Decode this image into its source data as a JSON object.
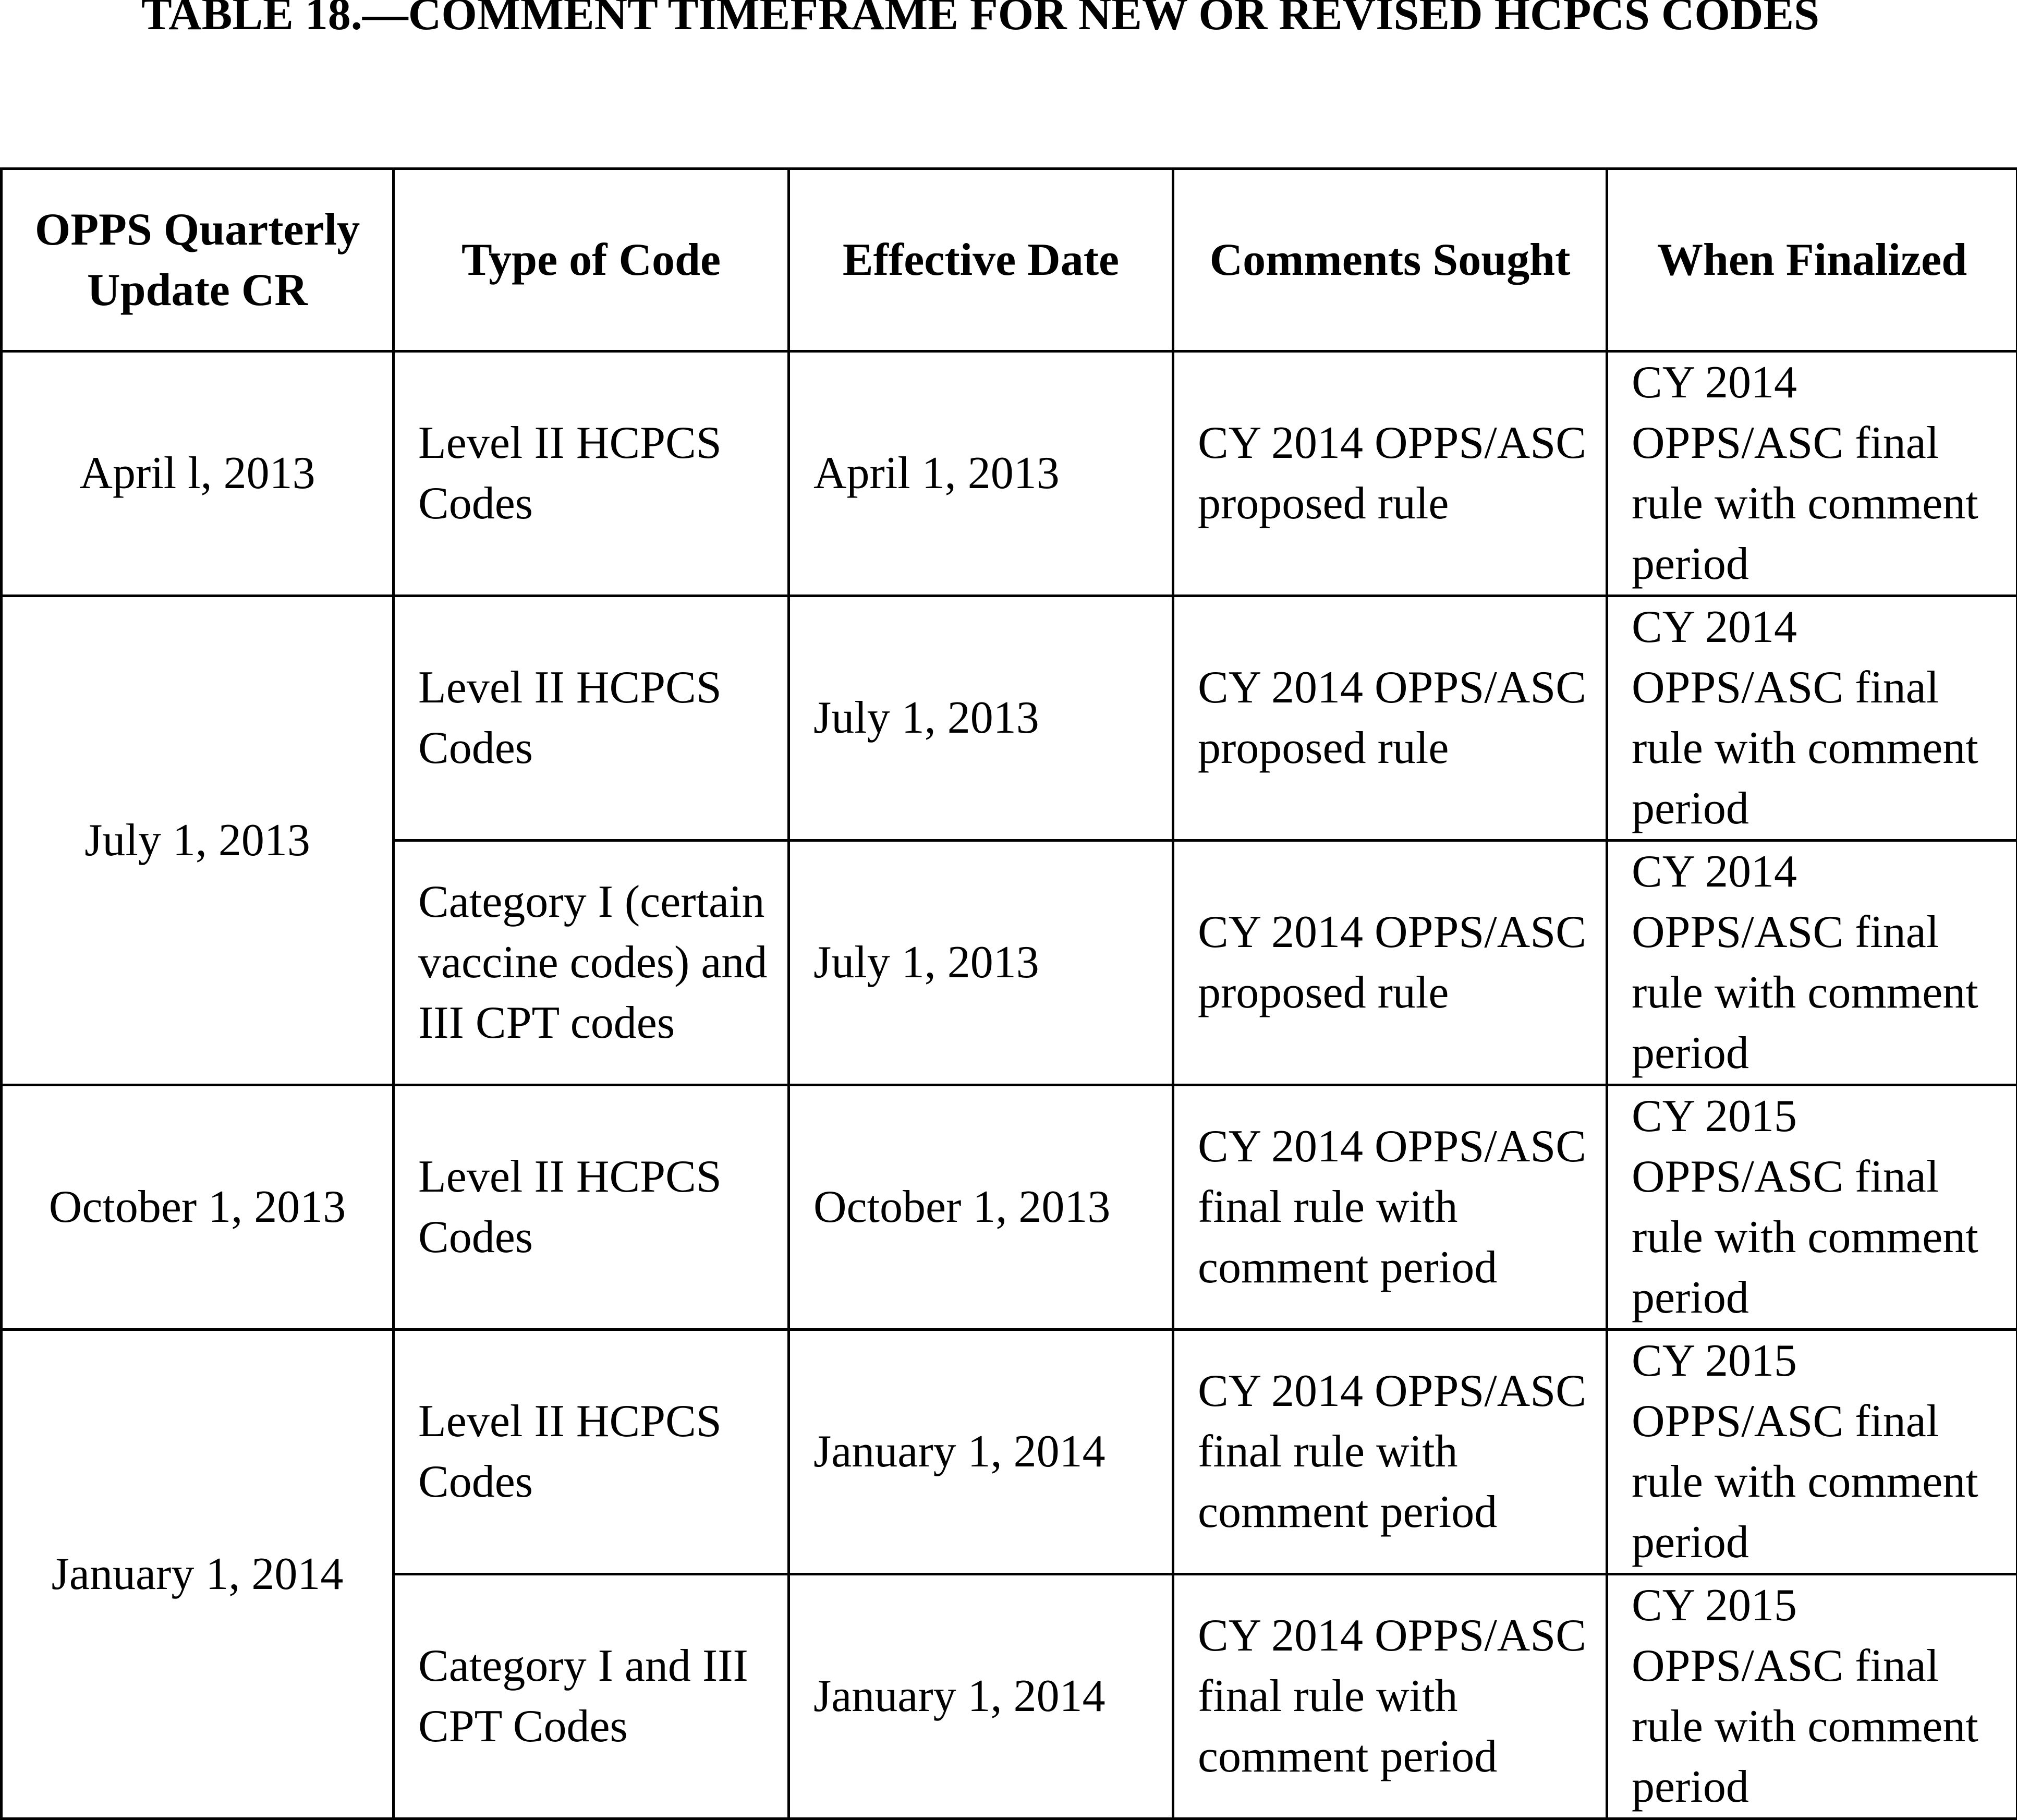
{
  "title": "TABLE 18.—COMMENT TIMEFRAME FOR NEW OR REVISED HCPCS CODES",
  "headers": [
    "OPPS Quarterly Update CR",
    "Type of Code",
    "Effective Date",
    "Comments Sought",
    "When Finalized"
  ],
  "groups": [
    {
      "update_cr": "April l, 2013",
      "rows": [
        {
          "type": "Level II HCPCS Codes",
          "effective": "April 1, 2013",
          "comments": "CY 2014 OPPS/ASC proposed rule",
          "finalized": "CY 2014 OPPS/ASC final rule with comment period"
        }
      ]
    },
    {
      "update_cr": "July 1, 2013",
      "rows": [
        {
          "type": "Level II HCPCS Codes",
          "effective": "July 1, 2013",
          "comments": "CY 2014 OPPS/ASC proposed rule",
          "finalized": "CY 2014 OPPS/ASC final rule with comment period"
        },
        {
          "type": "Category I (certain vaccine codes) and III CPT codes",
          "effective": "July 1, 2013",
          "comments": "CY 2014 OPPS/ASC proposed rule",
          "finalized": "CY 2014 OPPS/ASC final rule with comment period"
        }
      ]
    },
    {
      "update_cr": "October 1, 2013",
      "rows": [
        {
          "type": "Level II HCPCS Codes",
          "effective": "October 1, 2013",
          "comments": "CY 2014 OPPS/ASC final rule with comment period",
          "finalized": "CY 2015 OPPS/ASC final rule with comment period"
        }
      ]
    },
    {
      "update_cr": "January 1, 2014",
      "rows": [
        {
          "type": "Level II HCPCS Codes",
          "effective": "January 1, 2014",
          "comments": "CY 2014 OPPS/ASC final rule with comment period",
          "finalized": "CY 2015 OPPS/ASC final rule with comment period"
        },
        {
          "type": "Category I and III CPT Codes",
          "effective": "January 1, 2014",
          "comments": "CY 2014 OPPS/ASC final rule with comment period",
          "finalized": "CY 2015 OPPS/ASC final rule with comment period"
        }
      ]
    }
  ]
}
